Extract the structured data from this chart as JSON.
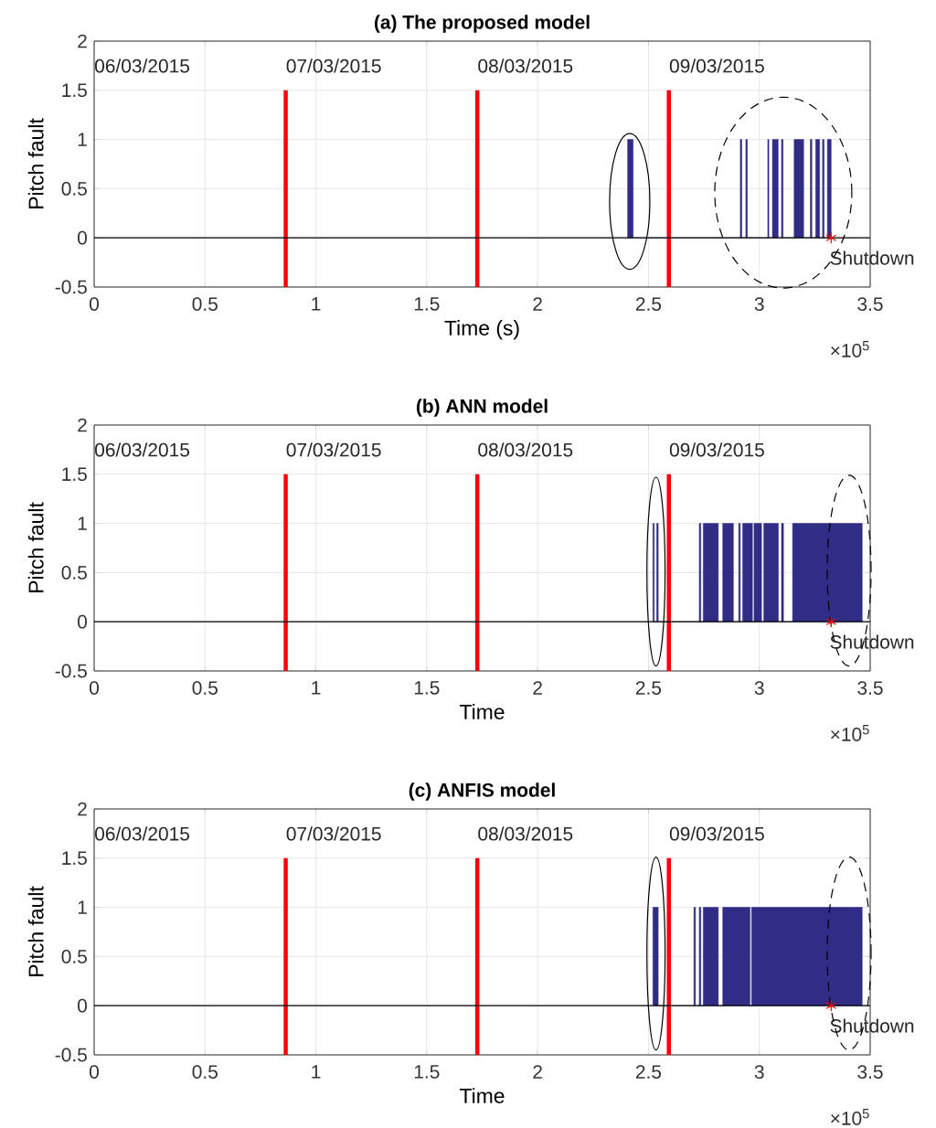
{
  "chart_data": [
    {
      "type": "area",
      "title": "(a) The proposed model",
      "xlabel": "Time (s)",
      "ylabel": "Pitch fault",
      "xlim": [
        0,
        3.5
      ],
      "xticks": [
        0,
        0.5,
        1,
        1.5,
        2,
        2.5,
        3,
        3.5
      ],
      "ylim": [
        -0.5,
        2
      ],
      "yticks": [
        -0.5,
        0,
        0.5,
        1,
        1.5,
        2
      ],
      "grid": true,
      "ref_lines": [
        {
          "axis": "y",
          "value": 0,
          "color": "#000000"
        }
      ],
      "annotations": [
        "06/03/2015",
        "07/03/2015",
        "08/03/2015",
        "09/03/2015",
        "×10$^{5}$"
      ],
      "series": [
        {
          "type": "line",
          "color": "#ff0000",
          "x": [
            0.864,
            0.864
          ],
          "values": [
            -0.5,
            1.5
          ]
        },
        {
          "type": "line",
          "color": "#ff0000",
          "x": [
            1.728,
            1.728
          ],
          "values": [
            -0.5,
            1.5
          ]
        },
        {
          "type": "line",
          "color": "#ff0000",
          "x": [
            2.592,
            2.592
          ],
          "values": [
            -0.5,
            1.5
          ]
        },
        {
          "color": "#312c85",
          "x": [
            2.406,
            2.406,
            2.431,
            2.431,
            2.914,
            2.914,
            2.921,
            2.921,
            2.939,
            2.939,
            2.946,
            2.946,
            3.038,
            3.038,
            3.043,
            3.043,
            3.059,
            3.059,
            3.085,
            3.085,
            3.1,
            3.1,
            3.107,
            3.107,
            3.157,
            3.157,
            3.2,
            3.2,
            3.23,
            3.23,
            3.237,
            3.237,
            3.254,
            3.254,
            3.272,
            3.272,
            3.285,
            3.285,
            3.292,
            3.292,
            3.307,
            3.307,
            3.324,
            3.324
          ],
          "values": [
            0,
            1,
            1,
            0,
            0,
            1,
            1,
            0,
            0,
            1,
            1,
            0,
            0,
            1,
            1,
            0,
            0,
            1,
            1,
            0,
            0,
            1,
            1,
            0,
            0,
            1,
            1,
            0,
            0,
            1,
            1,
            0,
            0,
            1,
            1,
            0,
            0,
            1,
            1,
            0,
            0,
            1,
            1,
            0
          ]
        },
        {
          "type": "scatter",
          "name": "Shutdown",
          "color": "#ff0000",
          "marker": "cross",
          "x": [
            3.324
          ],
          "values": [
            0
          ]
        }
      ]
    },
    {
      "type": "area",
      "title": "(b) ANN model",
      "xlabel": "Time",
      "ylabel": "Pitch fault",
      "xlim": [
        0,
        3.5
      ],
      "xticks": [
        0,
        0.5,
        1,
        1.5,
        2,
        2.5,
        3,
        3.5
      ],
      "ylim": [
        -0.5,
        2
      ],
      "yticks": [
        -0.5,
        0,
        0.5,
        1,
        1.5,
        2
      ],
      "grid": true,
      "ref_lines": [
        {
          "axis": "y",
          "value": 0,
          "color": "#000000"
        }
      ],
      "annotations": [
        "06/03/2015",
        "07/03/2015",
        "08/03/2015",
        "09/03/2015",
        "×10$^{5}$"
      ],
      "series": [
        {
          "type": "line",
          "color": "#ff0000",
          "x": [
            0.864,
            0.864
          ],
          "values": [
            -0.5,
            1.5
          ]
        },
        {
          "type": "line",
          "color": "#ff0000",
          "x": [
            1.728,
            1.728
          ],
          "values": [
            -0.5,
            1.5
          ]
        },
        {
          "type": "line",
          "color": "#ff0000",
          "x": [
            2.592,
            2.592
          ],
          "values": [
            -0.5,
            1.5
          ]
        },
        {
          "color": "#312c85",
          "x": [
            2.52,
            2.52,
            2.526,
            2.526,
            2.537,
            2.537,
            2.544,
            2.544,
            2.729,
            2.729,
            2.736,
            2.736,
            2.747,
            2.747,
            2.815,
            2.815,
            2.835,
            2.835,
            2.883,
            2.883,
            2.907,
            2.907,
            2.914,
            2.914,
            2.925,
            2.925,
            2.969,
            2.969,
            2.976,
            2.976,
            3.01,
            3.01,
            3.02,
            3.02,
            3.086,
            3.086,
            3.1,
            3.1,
            3.109,
            3.109,
            3.15,
            3.15,
            3.464,
            3.464
          ],
          "values": [
            0,
            1,
            1,
            0,
            0,
            1,
            1,
            0,
            0,
            1,
            1,
            0,
            0,
            1,
            1,
            0,
            0,
            1,
            1,
            0,
            0,
            1,
            1,
            0,
            0,
            1,
            1,
            0,
            0,
            1,
            1,
            0,
            0,
            1,
            1,
            0,
            0,
            1,
            1,
            0,
            0,
            1,
            1,
            0
          ]
        },
        {
          "type": "scatter",
          "name": "Shutdown",
          "color": "#ff0000",
          "marker": "cross",
          "x": [
            3.324
          ],
          "values": [
            0
          ]
        }
      ]
    },
    {
      "type": "area",
      "title": "(c) ANFIS model",
      "xlabel": "Time",
      "ylabel": "Pitch fault",
      "xlim": [
        0,
        3.5
      ],
      "xticks": [
        0,
        0.5,
        1,
        1.5,
        2,
        2.5,
        3,
        3.5
      ],
      "ylim": [
        -0.5,
        2
      ],
      "yticks": [
        -0.5,
        0,
        0.5,
        1,
        1.5,
        2
      ],
      "grid": true,
      "ref_lines": [
        {
          "axis": "y",
          "value": 0,
          "color": "#000000"
        }
      ],
      "annotations": [
        "06/03/2015",
        "07/03/2015",
        "08/03/2015",
        "09/03/2015",
        "×10$^{5}$"
      ],
      "series": [
        {
          "type": "line",
          "color": "#ff0000",
          "x": [
            0.864,
            0.864
          ],
          "values": [
            -0.5,
            1.5
          ]
        },
        {
          "type": "line",
          "color": "#ff0000",
          "x": [
            1.728,
            1.728
          ],
          "values": [
            -0.5,
            1.5
          ]
        },
        {
          "type": "line",
          "color": "#ff0000",
          "x": [
            2.592,
            2.592
          ],
          "values": [
            -0.5,
            1.5
          ]
        },
        {
          "color": "#312c85",
          "x": [
            2.52,
            2.52,
            2.544,
            2.544,
            2.705,
            2.705,
            2.712,
            2.712,
            2.729,
            2.729,
            2.736,
            2.736,
            2.747,
            2.747,
            2.815,
            2.815,
            2.835,
            2.835,
            2.958,
            2.958,
            2.965,
            2.965,
            3.464,
            3.464
          ],
          "values": [
            0,
            1,
            1,
            0,
            0,
            1,
            1,
            0,
            0,
            1,
            1,
            0,
            0,
            1,
            1,
            0,
            0,
            1,
            1,
            0,
            0,
            1,
            1,
            0
          ]
        },
        {
          "type": "scatter",
          "name": "Shutdown",
          "color": "#ff0000",
          "marker": "cross",
          "x": [
            3.324
          ],
          "values": [
            0
          ]
        }
      ]
    }
  ]
}
